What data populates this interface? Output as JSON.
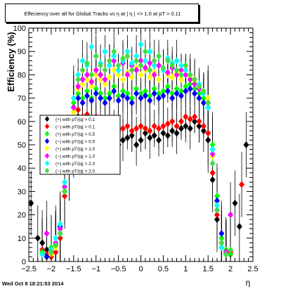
{
  "chart_data": {
    "type": "scatter",
    "title": "Effeciency over all for Global Tracks vs   η at | η | <= 1.0 at pT > 0.11",
    "xlabel": "η",
    "ylabel": "Efficiency (%)",
    "xlim": [
      -2.5,
      2.5
    ],
    "ylim": [
      0,
      100
    ],
    "x_ticks": [
      "−2.5",
      "−2",
      "−1.5",
      "−1",
      "−0.5",
      "0",
      "0.5",
      "1",
      "1.5",
      "2",
      "2.5"
    ],
    "y_ticks": [
      "0",
      "10",
      "20",
      "30",
      "40",
      "50",
      "60",
      "70",
      "80",
      "90",
      "100"
    ],
    "legend_position": "left",
    "series": [
      {
        "name": "(+) with pT/|q| > 0.1",
        "color": "#000000",
        "marker": "diamond",
        "x": [
          -2.45,
          -2.3,
          -2.2,
          -2.1,
          -2.0,
          -1.9,
          -1.8,
          -1.7,
          -1.6,
          -1.5,
          -1.4,
          -1.3,
          -1.2,
          -1.1,
          -1.0,
          -0.9,
          -0.8,
          -0.7,
          -0.6,
          -0.5,
          -0.4,
          -0.3,
          -0.2,
          -0.1,
          0.0,
          0.1,
          0.2,
          0.3,
          0.4,
          0.5,
          0.6,
          0.7,
          0.8,
          0.9,
          1.0,
          1.1,
          1.2,
          1.3,
          1.4,
          1.5,
          1.6,
          1.7,
          1.8,
          1.9,
          2.0,
          2.1,
          2.2,
          2.35
        ],
        "y": [
          25,
          10,
          8,
          5,
          3,
          4,
          12,
          30,
          40,
          58,
          62,
          58,
          60,
          55,
          56,
          54,
          55,
          52,
          54,
          50,
          52,
          53,
          54,
          50,
          52,
          55,
          53,
          54,
          52,
          55,
          54,
          56,
          55,
          57,
          58,
          57,
          60,
          58,
          56,
          52,
          35,
          18,
          8,
          4,
          3,
          25,
          15,
          50
        ]
      },
      {
        "name": "(−) with pT/|q| > 0.1",
        "color": "#ff0000",
        "marker": "diamond",
        "x": [
          -2.2,
          -2.1,
          -2.0,
          -1.9,
          -1.8,
          -1.7,
          -1.6,
          -1.5,
          -1.4,
          -1.3,
          -1.2,
          -1.1,
          -1.0,
          -0.9,
          -0.8,
          -0.7,
          -0.6,
          -0.5,
          -0.4,
          -0.3,
          -0.2,
          -0.1,
          0.0,
          0.1,
          0.2,
          0.3,
          0.4,
          0.5,
          0.6,
          0.7,
          0.8,
          0.9,
          1.0,
          1.1,
          1.2,
          1.3,
          1.4,
          1.5,
          1.6,
          1.7,
          1.8,
          1.9,
          2.0,
          2.25
        ],
        "y": [
          5,
          3,
          2,
          4,
          10,
          28,
          42,
          60,
          65,
          62,
          63,
          60,
          62,
          60,
          58,
          57,
          58,
          56,
          57,
          58,
          56,
          57,
          58,
          57,
          56,
          58,
          57,
          58,
          59,
          60,
          58,
          60,
          62,
          61,
          62,
          60,
          58,
          55,
          38,
          20,
          6,
          3,
          4,
          33
        ]
      },
      {
        "name": "(+) with pT/|q| > 0.5",
        "color": "#00ff00",
        "marker": "diamond",
        "x": [
          -2.2,
          -2.0,
          -1.9,
          -1.8,
          -1.7,
          -1.6,
          -1.5,
          -1.4,
          -1.3,
          -1.2,
          -1.1,
          -1.0,
          -0.9,
          -0.8,
          -0.7,
          -0.6,
          -0.5,
          -0.4,
          -0.3,
          -0.2,
          -0.1,
          0.0,
          0.1,
          0.2,
          0.3,
          0.4,
          0.5,
          0.6,
          0.7,
          0.8,
          0.9,
          1.0,
          1.1,
          1.2,
          1.3,
          1.4,
          1.5,
          1.6,
          1.7,
          1.8,
          1.9,
          2.0
        ],
        "y": [
          4,
          6,
          8,
          14,
          32,
          48,
          68,
          72,
          70,
          73,
          70,
          74,
          72,
          70,
          72,
          75,
          71,
          73,
          72,
          70,
          74,
          72,
          73,
          71,
          74,
          72,
          73,
          75,
          72,
          74,
          73,
          75,
          76,
          74,
          72,
          70,
          68,
          50,
          28,
          10,
          5,
          3
        ]
      },
      {
        "name": "(−) with pT/|q| > 0.5",
        "color": "#0000ff",
        "marker": "diamond",
        "x": [
          -2.1,
          -2.0,
          -1.9,
          -1.8,
          -1.7,
          -1.6,
          -1.5,
          -1.4,
          -1.3,
          -1.2,
          -1.1,
          -1.0,
          -0.9,
          -0.8,
          -0.7,
          -0.6,
          -0.5,
          -0.4,
          -0.3,
          -0.2,
          -0.1,
          0.0,
          0.1,
          0.2,
          0.3,
          0.4,
          0.5,
          0.6,
          0.7,
          0.8,
          0.9,
          1.0,
          1.1,
          1.2,
          1.3,
          1.4,
          1.5,
          1.6,
          1.7,
          1.8,
          1.9
        ],
        "y": [
          2,
          4,
          7,
          15,
          30,
          46,
          66,
          70,
          68,
          71,
          69,
          72,
          70,
          68,
          70,
          73,
          69,
          71,
          70,
          68,
          72,
          70,
          71,
          69,
          72,
          70,
          71,
          73,
          70,
          72,
          71,
          73,
          74,
          72,
          70,
          68,
          66,
          48,
          26,
          12,
          4
        ]
      },
      {
        "name": "(+) with pT/|q| > 1.0",
        "color": "#ffff00",
        "marker": "diamond",
        "x": [
          -2.0,
          -1.9,
          -1.8,
          -1.7,
          -1.6,
          -1.5,
          -1.4,
          -1.3,
          -1.2,
          -1.1,
          -1.0,
          -0.9,
          -0.8,
          -0.7,
          -0.6,
          -0.5,
          -0.4,
          -0.3,
          -0.2,
          -0.1,
          0.0,
          0.1,
          0.2,
          0.3,
          0.4,
          0.5,
          0.6,
          0.7,
          0.8,
          0.9,
          1.0,
          1.1,
          1.2,
          1.3,
          1.4,
          1.5,
          1.6,
          1.7,
          1.8,
          1.9
        ],
        "y": [
          3,
          6,
          12,
          30,
          45,
          64,
          74,
          76,
          78,
          75,
          80,
          78,
          76,
          79,
          82,
          80,
          78,
          81,
          79,
          83,
          80,
          82,
          79,
          81,
          78,
          82,
          80,
          79,
          81,
          78,
          80,
          79,
          77,
          75,
          73,
          70,
          45,
          24,
          8,
          3
        ]
      },
      {
        "name": "(−) with pT/|q| > 1.0",
        "color": "#ff00ff",
        "marker": "diamond",
        "x": [
          -2.1,
          -2.0,
          -1.9,
          -1.8,
          -1.7,
          -1.6,
          -1.5,
          -1.4,
          -1.3,
          -1.2,
          -1.1,
          -1.0,
          -0.9,
          -0.8,
          -0.7,
          -0.6,
          -0.5,
          -0.4,
          -0.3,
          -0.2,
          -0.1,
          0.0,
          0.1,
          0.2,
          0.3,
          0.4,
          0.5,
          0.6,
          0.7,
          0.8,
          0.9,
          1.0,
          1.1,
          1.2,
          1.3,
          1.4,
          1.5,
          1.6,
          1.7,
          1.8,
          1.9,
          2.0
        ],
        "y": [
          12,
          5,
          8,
          14,
          32,
          47,
          66,
          75,
          78,
          80,
          77,
          82,
          80,
          78,
          84,
          86,
          82,
          85,
          80,
          84,
          82,
          86,
          83,
          85,
          80,
          84,
          82,
          81,
          83,
          80,
          82,
          80,
          78,
          76,
          74,
          72,
          68,
          46,
          22,
          6,
          4,
          20
        ]
      },
      {
        "name": "(+) with pT/|q| > 2.0",
        "color": "#00ffff",
        "marker": "diamond",
        "x": [
          -2.2,
          -2.0,
          -1.9,
          -1.8,
          -1.7,
          -1.6,
          -1.5,
          -1.4,
          -1.3,
          -1.2,
          -1.1,
          -1.0,
          -0.9,
          -0.8,
          -0.7,
          -0.6,
          -0.5,
          -0.4,
          -0.3,
          -0.2,
          -0.1,
          0.0,
          0.1,
          0.2,
          0.3,
          0.4,
          0.5,
          0.6,
          0.7,
          0.8,
          0.9,
          1.0,
          1.1,
          1.2,
          1.3,
          1.4,
          1.5,
          1.6,
          1.7,
          1.8,
          1.9
        ],
        "y": [
          3,
          5,
          10,
          16,
          34,
          48,
          70,
          80,
          86,
          84,
          92,
          88,
          85,
          90,
          84,
          88,
          82,
          86,
          90,
          85,
          88,
          93,
          86,
          90,
          84,
          88,
          82,
          87,
          85,
          86,
          84,
          82,
          80,
          78,
          76,
          72,
          66,
          48,
          24,
          6,
          3
        ]
      },
      {
        "name": "(−) with pT/|q| > 2.0",
        "color": "#44dd44",
        "marker": "diamond",
        "x": [
          -2.0,
          -1.9,
          -1.8,
          -1.7,
          -1.6,
          -1.5,
          -1.4,
          -1.3,
          -1.2,
          -1.1,
          -1.0,
          -0.9,
          -0.8,
          -0.7,
          -0.6,
          -0.5,
          -0.4,
          -0.3,
          -0.2,
          -0.1,
          0.0,
          0.1,
          0.2,
          0.3,
          0.4,
          0.5,
          0.6,
          0.7,
          0.8,
          0.9,
          1.0,
          1.1,
          1.2,
          1.3,
          1.4,
          1.5,
          1.6,
          1.7,
          1.8,
          1.9,
          2.0
        ],
        "y": [
          4,
          7,
          12,
          30,
          40,
          50,
          78,
          82,
          85,
          80,
          88,
          84,
          82,
          86,
          90,
          84,
          87,
          88,
          82,
          86,
          84,
          90,
          82,
          86,
          88,
          83,
          86,
          84,
          82,
          80,
          84,
          80,
          78,
          75,
          73,
          68,
          42,
          22,
          8,
          3,
          5
        ]
      }
    ]
  },
  "footer_text": "Wed Oct  8 18:21:53 2014"
}
